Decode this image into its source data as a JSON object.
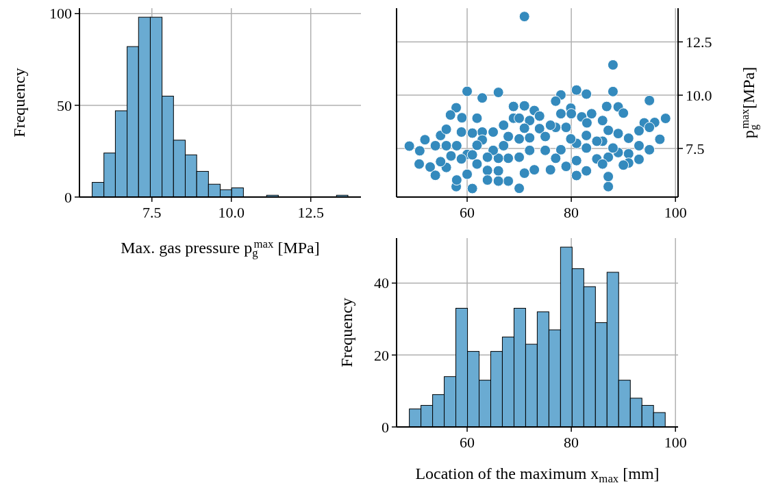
{
  "chart_data": [
    {
      "type": "histogram",
      "xlabel": "Max. gas pressure p$_{g}$$^{max}$ [MPa]",
      "ylabel": "Frequency",
      "color": "#6aabd2",
      "bins": [
        5.62,
        5.99,
        6.35,
        6.72,
        7.08,
        7.45,
        7.82,
        8.18,
        8.55,
        8.91,
        9.28,
        9.65,
        10.01,
        10.38,
        10.74,
        11.11,
        11.48,
        11.84,
        12.21,
        12.57,
        12.94,
        13.31,
        13.67
      ],
      "values": [
        8,
        24,
        47,
        82,
        98,
        98,
        55,
        31,
        23,
        14,
        7,
        4,
        5,
        0,
        0,
        1,
        0,
        0,
        0,
        0,
        0,
        1
      ],
      "xlim": [
        5.22,
        14.08
      ],
      "xticks": [
        {
          "value": 7.5,
          "label": "7.5"
        },
        {
          "value": 10,
          "label": "10.0"
        },
        {
          "value": 12.5,
          "label": "12.5"
        }
      ],
      "ylim": [
        0,
        102.9
      ],
      "yticks": [
        0,
        50,
        100
      ],
      "grid": true
    },
    {
      "type": "scatter",
      "ylabel": "p$_{g}$$^{max}$[MPa]",
      "color": "#348abd",
      "marker": "circle",
      "x": [
        71.0,
        88.0,
        60.0,
        62.9,
        66.0,
        81.0,
        82.9,
        88.0,
        78.0,
        77.0,
        95.0,
        98.1,
        97.0,
        48.9,
        50.9,
        51.9,
        50.8,
        52.9,
        53.9,
        54.9,
        56.0,
        57.9,
        56.8,
        59.0,
        57.9,
        61.0,
        70.0,
        87.1,
        87.1,
        61.9,
        68.9,
        71.0,
        72.9,
        73.9,
        79.9,
        80.0,
        78.0,
        86.8,
        89.0,
        90.0,
        83.9,
        82.0,
        83.0,
        94.0,
        96.0,
        95.0,
        93.0,
        95.0,
        93.0,
        91.0,
        91.0,
        91.0,
        90.0,
        89.0,
        89.0,
        87.1,
        86.0,
        84.9,
        87.1,
        82.9,
        82.9,
        82.9,
        81.0,
        81.0,
        81.0,
        79.0,
        78.0,
        77.0,
        77.0,
        76.0,
        75.0,
        73.9,
        72.0,
        72.0,
        72.0,
        72.9,
        71.0,
        71.0,
        70.0,
        70.0,
        68.9,
        67.9,
        67.9,
        67.0,
        67.0,
        66.0,
        66.0,
        66.0,
        65.0,
        65.0,
        63.9,
        63.9,
        62.9,
        62.9,
        61.9,
        61.0,
        60.0,
        60.0,
        58.9,
        58.9,
        58.0,
        58.0,
        56.9,
        56.0,
        56.0,
        54.9,
        53.9,
        61.9,
        70.0,
        76.0,
        79.0,
        84.9,
        86.0,
        88.0,
        93.0,
        86.0,
        79.9,
        75.0,
        67.9,
        63.9,
        61.0
      ],
      "values": [
        13.69,
        11.42,
        10.18,
        9.87,
        10.13,
        10.24,
        10.05,
        10.17,
        10.01,
        9.72,
        9.75,
        8.91,
        7.93,
        7.61,
        7.39,
        7.91,
        6.77,
        6.63,
        6.24,
        8.11,
        8.4,
        9.41,
        9.07,
        8.94,
        5.71,
        5.62,
        5.63,
        5.71,
        6.18,
        8.92,
        9.47,
        9.5,
        9.28,
        9.02,
        9.39,
        9.13,
        9.13,
        9.47,
        9.45,
        9.16,
        9.13,
        8.98,
        8.7,
        8.7,
        8.72,
        8.49,
        8.33,
        7.44,
        6.99,
        7.98,
        7.25,
        6.82,
        6.72,
        7.31,
        8.2,
        8.35,
        7.84,
        7.01,
        7.09,
        8.11,
        7.52,
        6.45,
        7.74,
        6.93,
        6.23,
        8.49,
        7.44,
        7.04,
        8.49,
        6.5,
        7.41,
        8.43,
        8.81,
        8.0,
        7.41,
        6.5,
        6.34,
        8.45,
        7.95,
        7.09,
        8.92,
        5.97,
        7.04,
        8.59,
        7.63,
        7.04,
        6.45,
        5.97,
        8.27,
        7.41,
        6.47,
        6.02,
        8.27,
        7.9,
        7.65,
        8.22,
        7.22,
        6.29,
        8.27,
        7.01,
        7.63,
        6.02,
        7.15,
        7.63,
        6.61,
        6.88,
        7.63,
        6.77,
        8.92,
        8.59,
        6.66,
        7.84,
        8.81,
        7.52,
        7.63,
        6.77,
        7.95,
        8.06,
        8.06,
        7.09,
        7.2
      ],
      "xlim": [
        46.45,
        100.5
      ],
      "xticks": [
        60,
        80,
        100
      ],
      "ylim": [
        5.22,
        14.08
      ],
      "yticks": [
        {
          "value": 7.5,
          "label": "7.5"
        },
        {
          "value": 10,
          "label": "10.0"
        },
        {
          "value": 12.5,
          "label": "12.5"
        }
      ],
      "grid": true
    },
    {
      "type": "histogram",
      "xlabel": "Location of the maximum x$_{max}$ [mm]",
      "ylabel": "Frequency",
      "color": "#6aabd2",
      "bins": [
        48.9,
        51.13,
        53.37,
        55.6,
        57.83,
        60.07,
        62.3,
        64.53,
        66.76,
        69.0,
        71.23,
        73.46,
        75.7,
        77.93,
        80.16,
        82.4,
        84.63,
        86.86,
        89.09,
        91.33,
        93.56,
        95.79,
        98.03
      ],
      "values": [
        5,
        6,
        9,
        14,
        33,
        21,
        13,
        21,
        25,
        33,
        23,
        32,
        27,
        50,
        44,
        39,
        29,
        43,
        13,
        8,
        6,
        4
      ],
      "xlim": [
        46.45,
        100.5
      ],
      "xticks": [
        60,
        80,
        100
      ],
      "ylim": [
        0,
        52.5
      ],
      "yticks": [
        0,
        20,
        40
      ],
      "grid": true
    }
  ]
}
